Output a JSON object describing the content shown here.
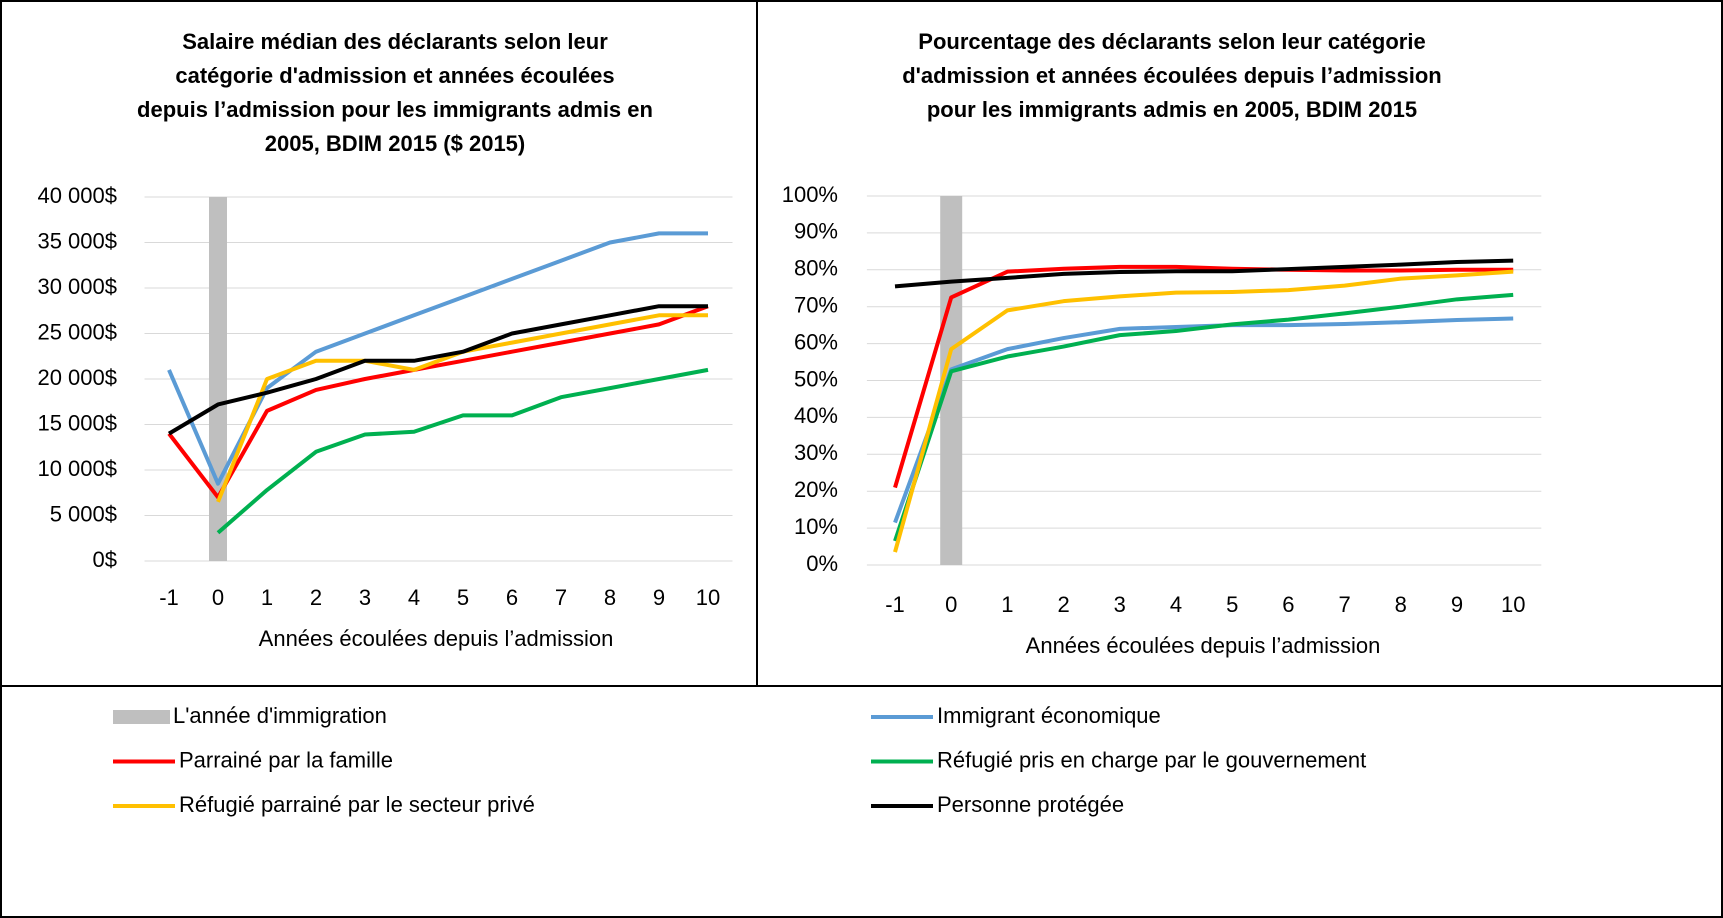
{
  "chart_data": [
    {
      "type": "line",
      "title": [
        "Salaire médian des déclarants selon leur",
        "catégorie d'admission et années écoulées",
        "depuis l’admission pour les immigrants admis en",
        "2005, BDIM 2015 ($ 2015)"
      ],
      "x_label": "Années écoulées depuis l’admission",
      "categories": [
        "-1",
        "0",
        "1",
        "2",
        "3",
        "4",
        "5",
        "6",
        "7",
        "8",
        "9",
        "10"
      ],
      "highlight": "0",
      "ylim": [
        0,
        40000
      ],
      "yticks": [
        {
          "value": 0,
          "label": "0$"
        },
        {
          "value": 5000,
          "label": "5 000$"
        },
        {
          "value": 10000,
          "label": "10 000$"
        },
        {
          "value": 15000,
          "label": "15 000$"
        },
        {
          "value": 20000,
          "label": "20 000$"
        },
        {
          "value": 25000,
          "label": "25 000$"
        },
        {
          "value": 30000,
          "label": "30 000$"
        },
        {
          "value": 35000,
          "label": "35 000$"
        },
        {
          "value": 40000,
          "label": "40 000$"
        }
      ],
      "grid": true,
      "series": [
        {
          "values": [
            21000,
            8500,
            19000,
            23000,
            25000,
            27000,
            29000,
            31000,
            33000,
            35000,
            36000,
            36000
          ]
        },
        {
          "values": [
            14000,
            7000,
            16500,
            18800,
            20000,
            21000,
            22000,
            23000,
            24000,
            25000,
            26000,
            28000
          ]
        },
        {
          "values": [
            null,
            3100,
            7800,
            12000,
            13900,
            14200,
            16000,
            16000,
            18000,
            19000,
            20000,
            21000
          ]
        },
        {
          "values": [
            null,
            6500,
            20000,
            22000,
            22000,
            21000,
            23000,
            24000,
            25000,
            26000,
            27000,
            27000
          ]
        },
        {
          "values": [
            14000,
            17200,
            18500,
            20000,
            22000,
            22000,
            23000,
            25000,
            26000,
            27000,
            28000,
            28000
          ]
        }
      ]
    },
    {
      "type": "line",
      "title": [
        "Pourcentage des déclarants selon leur catégorie",
        "d'admission et années écoulées depuis l’admission",
        "pour les immigrants admis en 2005, BDIM 2015"
      ],
      "x_label": "Années écoulées depuis l’admission",
      "categories": [
        "-1",
        "0",
        "1",
        "2",
        "3",
        "4",
        "5",
        "6",
        "7",
        "8",
        "9",
        "10"
      ],
      "highlight": "0",
      "ylim": [
        0,
        100
      ],
      "yticks": [
        {
          "value": 0,
          "label": "0%"
        },
        {
          "value": 10,
          "label": "10%"
        },
        {
          "value": 20,
          "label": "20%"
        },
        {
          "value": 30,
          "label": "30%"
        },
        {
          "value": 40,
          "label": "40%"
        },
        {
          "value": 50,
          "label": "50%"
        },
        {
          "value": 60,
          "label": "60%"
        },
        {
          "value": 70,
          "label": "70%"
        },
        {
          "value": 80,
          "label": "80%"
        },
        {
          "value": 90,
          "label": "90%"
        },
        {
          "value": 100,
          "label": "100%"
        }
      ],
      "grid": true,
      "series": [
        {
          "values": [
            11.5,
            53,
            58.5,
            61.5,
            64,
            64.5,
            65,
            65,
            65.3,
            65.8,
            66.4,
            66.8
          ]
        },
        {
          "values": [
            21,
            72.5,
            79.5,
            80.3,
            80.8,
            80.8,
            80.3,
            80,
            79.8,
            79.8,
            80,
            80
          ]
        },
        {
          "values": [
            6.5,
            52.5,
            56.5,
            59.2,
            62.3,
            63.4,
            65.2,
            66.5,
            68.2,
            70,
            72,
            73.2
          ]
        },
        {
          "values": [
            3.5,
            58.5,
            69,
            71.5,
            72.8,
            73.8,
            74,
            74.5,
            75.7,
            77.6,
            78.5,
            79.5
          ]
        },
        {
          "values": [
            75.5,
            76.8,
            77.8,
            78.9,
            79.4,
            79.6,
            79.6,
            80.2,
            80.8,
            81.4,
            82.1,
            82.5
          ]
        }
      ]
    }
  ],
  "legend": {
    "highlight": {
      "name": "L'année d'immigration",
      "color": "#bfbfbf"
    },
    "series": [
      {
        "name": "Immigrant économique",
        "color": "#5b9bd5"
      },
      {
        "name": "Parrainé par la famille",
        "color": "#ff0000"
      },
      {
        "name": "Réfugié pris en charge par le gouvernement",
        "color": "#00b050"
      },
      {
        "name": "Réfugié parrainé par le secteur privé",
        "color": "#ffc000"
      },
      {
        "name": "Personne protégée",
        "color": "#000000"
      }
    ]
  }
}
